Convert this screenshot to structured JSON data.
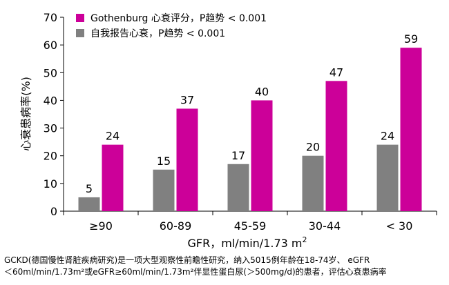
{
  "chart_data": {
    "type": "bar",
    "categories": [
      "≥90",
      "60-89",
      "45-59",
      "30-44",
      "< 30"
    ],
    "series": [
      {
        "name": "自我报告心衰，P趋势 < 0.001",
        "values": [
          5,
          15,
          17,
          20,
          24
        ],
        "color": "#808080"
      },
      {
        "name": "Gothenburg  心衰评分，P趋势 < 0.001",
        "values": [
          24,
          37,
          40,
          47,
          59
        ],
        "color": "#cc0099"
      }
    ],
    "legend_order": [
      1,
      0
    ],
    "legend_placement": "top-left",
    "ylim": [
      0,
      70
    ],
    "yticks": [
      0,
      10,
      20,
      30,
      40,
      50,
      60,
      70
    ],
    "ylabel": "心衰患病率(%)",
    "xlabel_main": "GFR，ml/min/1.73 m",
    "xlabel_sup": "2",
    "grid": false
  },
  "footnote": {
    "line1": "GCKD(德国慢性肾脏疾病研究)是一项大型观察性前瞻性研究，纳入5015例年龄在18-74岁、  eGFR",
    "line2": "＜60ml/min/1.73m²或eGFR≥60ml/min/1.73m²伴显性蛋白尿(＞500mg/d)的患者，评估心衰患病率"
  }
}
